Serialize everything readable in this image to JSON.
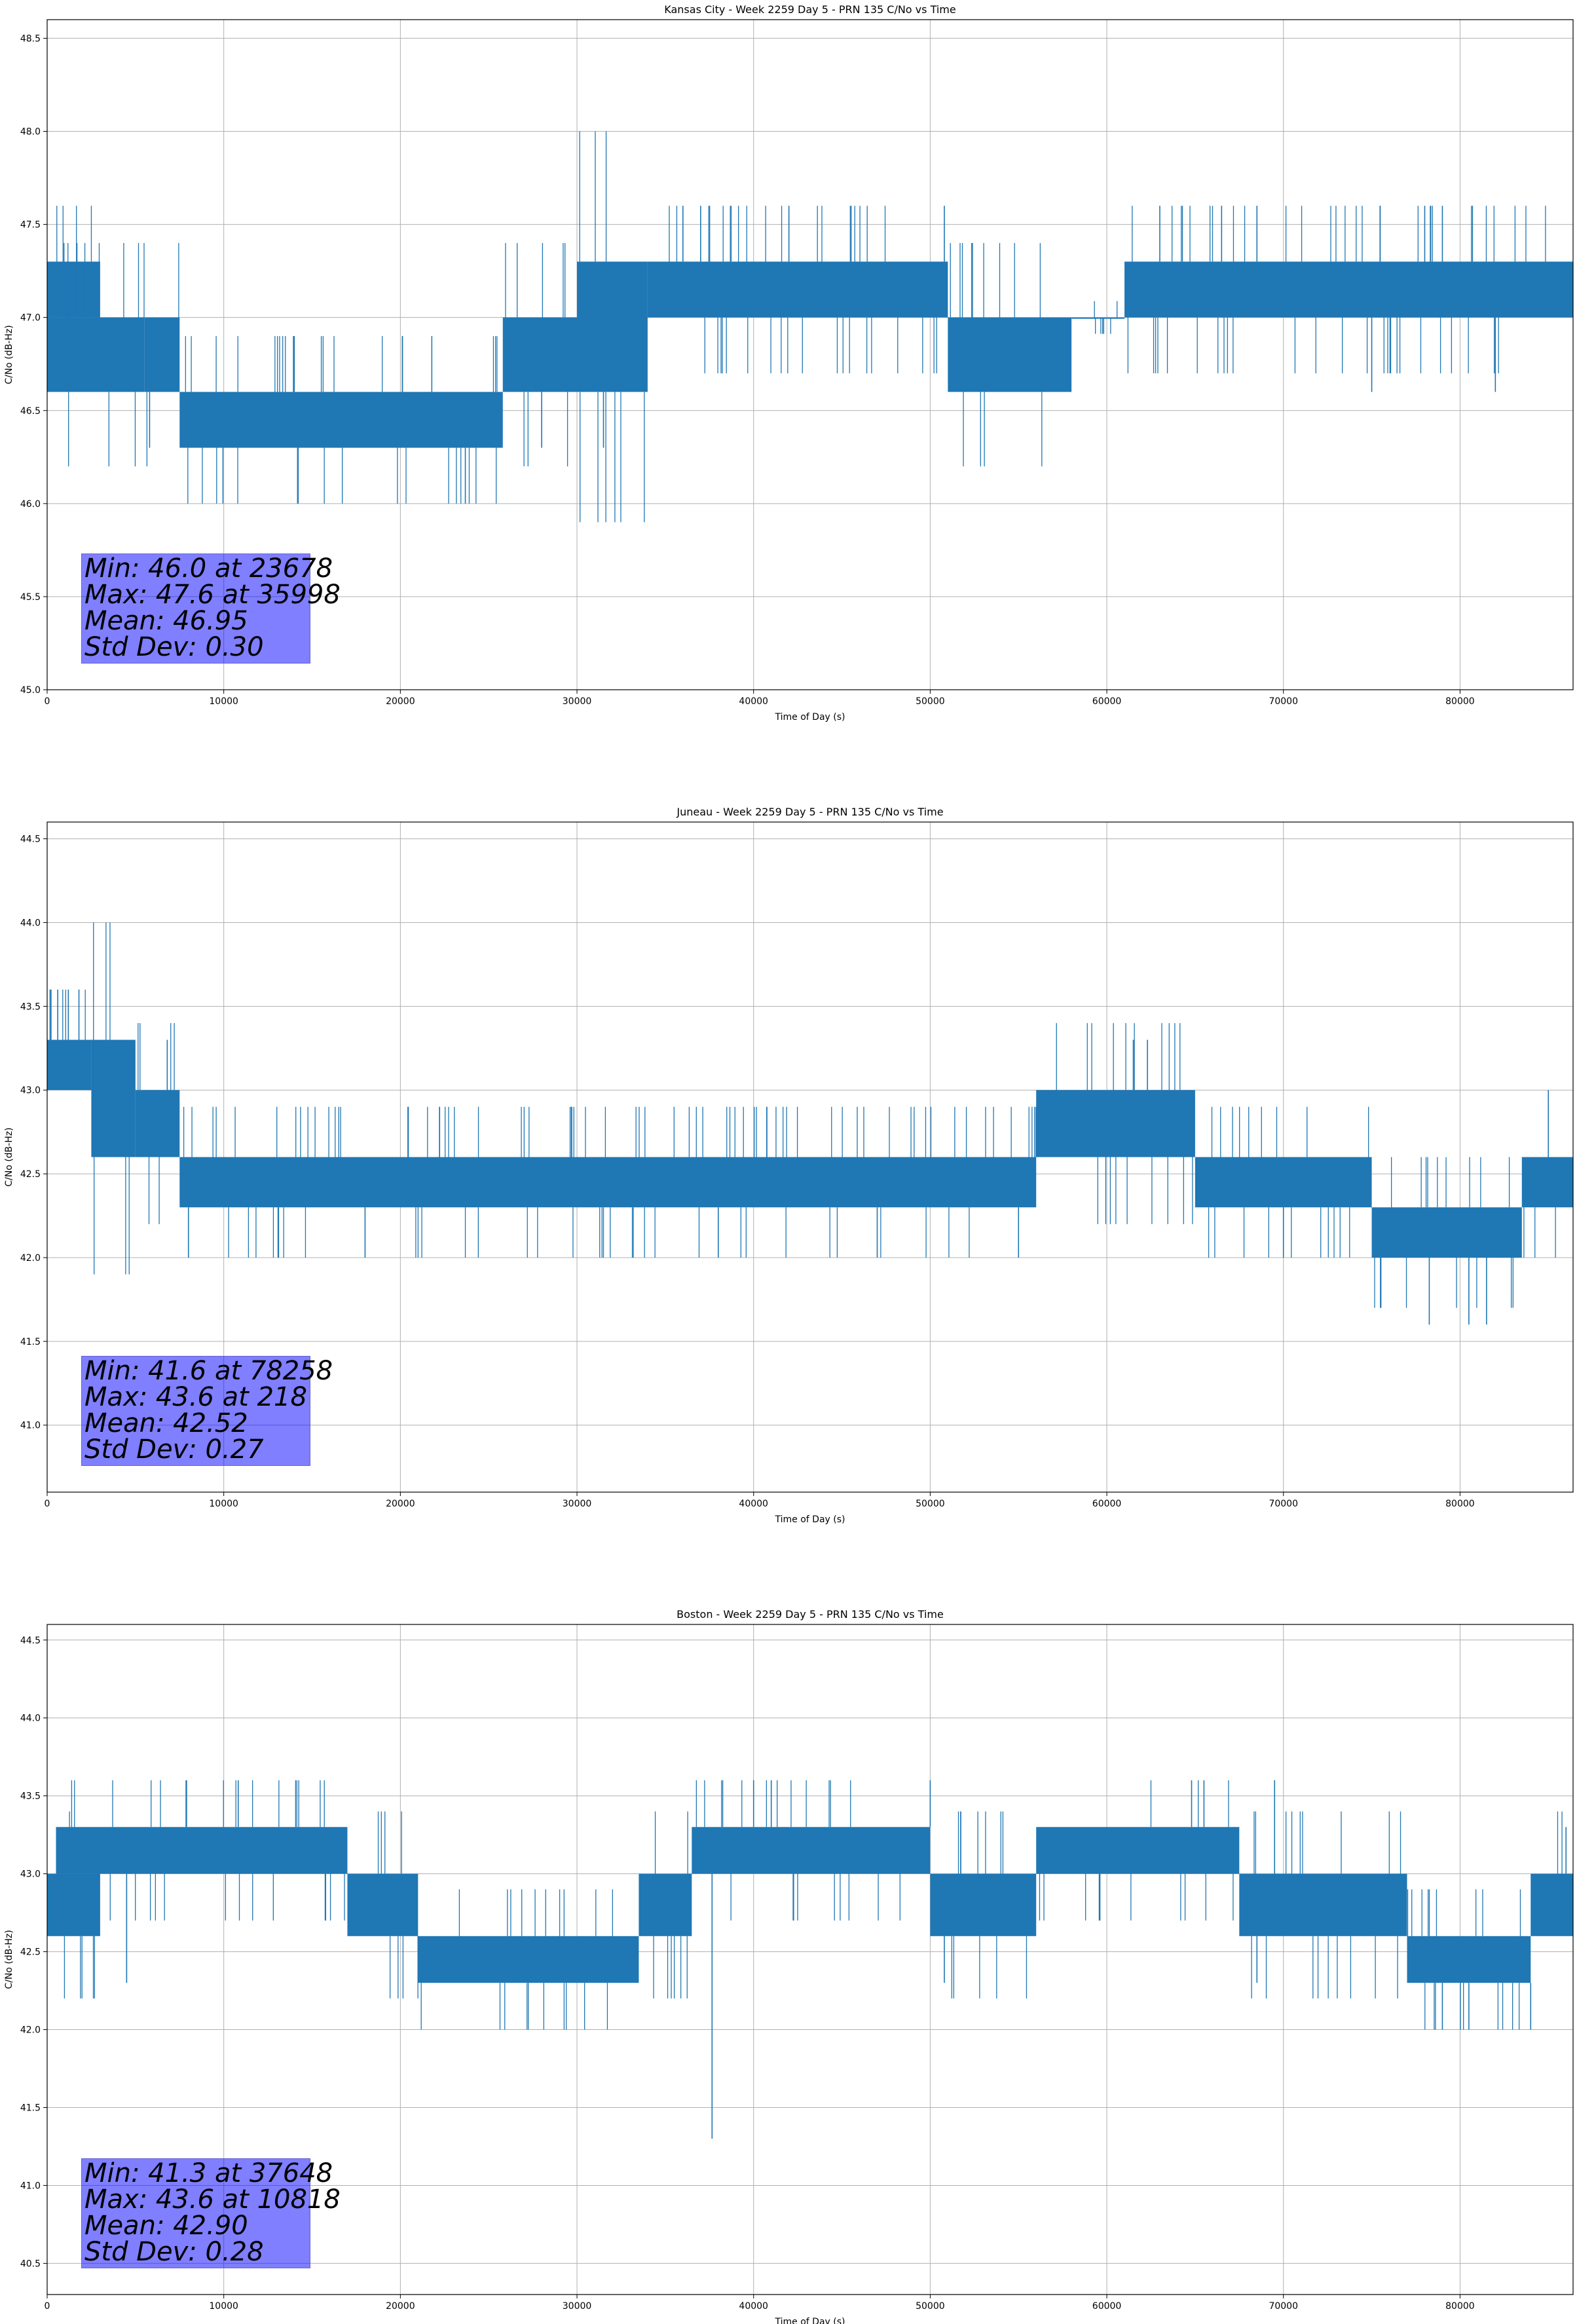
{
  "colors": {
    "line": "#1f77b4",
    "grid": "#b0b0b0",
    "stats_box": "#8080ff"
  },
  "chart_data": [
    {
      "type": "line",
      "title": "Kansas City - Week 2259 Day 5 - PRN 135 C/No vs Time",
      "xlabel": "Time of Day (s)",
      "ylabel": "C/No (dB-Hz)",
      "xlim": [
        0,
        86400
      ],
      "ylim": [
        45.0,
        48.6
      ],
      "xticks": [
        0,
        10000,
        20000,
        30000,
        40000,
        50000,
        60000,
        70000,
        80000
      ],
      "yticks": [
        "45.0",
        "45.5",
        "46.0",
        "46.5",
        "47.0",
        "47.5",
        "48.0",
        "48.5"
      ],
      "grid": true,
      "stats": [
        "Min: 46.0 at 23678",
        "Max: 47.6 at 35998",
        "Mean: 46.95",
        "Std Dev: 0.30"
      ],
      "series": [
        {
          "bands": [
            {
              "x": [
                0,
                3000
              ],
              "lo": 47.0,
              "hi": 47.3
            },
            {
              "x": [
                0,
                5500
              ],
              "lo": 46.6,
              "hi": 47.0
            },
            {
              "x": [
                5500,
                7500
              ],
              "lo": 46.6,
              "hi": 47.0
            },
            {
              "x": [
                7500,
                25800
              ],
              "lo": 46.3,
              "hi": 46.6
            },
            {
              "x": [
                25800,
                30000
              ],
              "lo": 46.6,
              "hi": 47.0
            },
            {
              "x": [
                30000,
                34000
              ],
              "lo": 46.6,
              "hi": 47.3
            },
            {
              "x": [
                34000,
                51000
              ],
              "lo": 47.0,
              "hi": 47.3
            },
            {
              "x": [
                51000,
                58000
              ],
              "lo": 46.6,
              "hi": 47.0
            },
            {
              "x": [
                58000,
                61000
              ],
              "lo": 47.0,
              "hi": 47.0
            },
            {
              "x": [
                61000,
                86400
              ],
              "lo": 47.0,
              "hi": 47.3
            }
          ],
          "spikes": [
            {
              "x": 23678,
              "v": 46.0
            },
            {
              "x": 35998,
              "v": 47.6
            },
            {
              "x": 37000,
              "v": 47.6
            },
            {
              "x": 42000,
              "v": 47.6
            },
            {
              "x": 50800,
              "v": 47.6
            },
            {
              "x": 63000,
              "v": 47.6
            },
            {
              "x": 66500,
              "v": 47.6
            },
            {
              "x": 68500,
              "v": 47.6
            },
            {
              "x": 78000,
              "v": 47.6
            },
            {
              "x": 79000,
              "v": 47.6
            },
            {
              "x": 31500,
              "v": 46.3
            },
            {
              "x": 28000,
              "v": 46.3
            },
            {
              "x": 5800,
              "v": 46.3
            },
            {
              "x": 57500,
              "v": 46.6
            },
            {
              "x": 75000,
              "v": 46.6
            },
            {
              "x": 82000,
              "v": 46.6
            }
          ]
        }
      ]
    },
    {
      "type": "line",
      "title": "Juneau - Week 2259 Day 5 - PRN 135 C/No vs Time",
      "xlabel": "Time of Day (s)",
      "ylabel": "C/No (dB-Hz)",
      "xlim": [
        0,
        86400
      ],
      "ylim": [
        40.6,
        44.6
      ],
      "xticks": [
        0,
        10000,
        20000,
        30000,
        40000,
        50000,
        60000,
        70000,
        80000
      ],
      "yticks": [
        "41.0",
        "41.5",
        "42.0",
        "42.5",
        "43.0",
        "43.5",
        "44.0",
        "44.5"
      ],
      "grid": true,
      "stats": [
        "Min: 41.6 at 78258",
        "Max: 43.6 at 218",
        "Mean: 42.52",
        "Std Dev: 0.27"
      ],
      "series": [
        {
          "bands": [
            {
              "x": [
                0,
                2500
              ],
              "lo": 43.0,
              "hi": 43.3
            },
            {
              "x": [
                2500,
                5000
              ],
              "lo": 42.6,
              "hi": 43.3
            },
            {
              "x": [
                5000,
                7500
              ],
              "lo": 42.6,
              "hi": 43.0
            },
            {
              "x": [
                7500,
                56000
              ],
              "lo": 42.3,
              "hi": 42.6
            },
            {
              "x": [
                56000,
                65000
              ],
              "lo": 42.6,
              "hi": 43.0
            },
            {
              "x": [
                65000,
                75000
              ],
              "lo": 42.3,
              "hi": 42.6
            },
            {
              "x": [
                75000,
                83500
              ],
              "lo": 42.0,
              "hi": 42.3
            },
            {
              "x": [
                83500,
                86400
              ],
              "lo": 42.3,
              "hi": 42.6
            }
          ],
          "spikes": [
            {
              "x": 218,
              "v": 43.6
            },
            {
              "x": 600,
              "v": 43.6
            },
            {
              "x": 1200,
              "v": 43.6
            },
            {
              "x": 1800,
              "v": 43.6
            },
            {
              "x": 2600,
              "v": 43.3
            },
            {
              "x": 3800,
              "v": 43.3
            },
            {
              "x": 6800,
              "v": 43.3
            },
            {
              "x": 61500,
              "v": 43.3
            },
            {
              "x": 62300,
              "v": 43.3
            },
            {
              "x": 78258,
              "v": 41.6
            },
            {
              "x": 80500,
              "v": 41.6
            },
            {
              "x": 81500,
              "v": 41.6
            },
            {
              "x": 85000,
              "v": 43.0
            },
            {
              "x": 8000,
              "v": 42.0
            },
            {
              "x": 18000,
              "v": 42.0
            },
            {
              "x": 38000,
              "v": 42.0
            },
            {
              "x": 47000,
              "v": 42.0
            },
            {
              "x": 55000,
              "v": 42.0
            },
            {
              "x": 70000,
              "v": 42.0
            }
          ]
        }
      ]
    },
    {
      "type": "line",
      "title": "Boston - Week 2259 Day 5 - PRN 135 C/No vs Time",
      "xlabel": "Time of Day (s)",
      "ylabel": "C/No (dB-Hz)",
      "xlim": [
        0,
        86400
      ],
      "ylim": [
        40.3,
        44.6
      ],
      "xticks": [
        0,
        10000,
        20000,
        30000,
        40000,
        50000,
        60000,
        70000,
        80000
      ],
      "yticks": [
        "40.5",
        "41.0",
        "41.5",
        "42.0",
        "42.5",
        "43.0",
        "43.5",
        "44.0",
        "44.5"
      ],
      "grid": true,
      "stats": [
        "Min: 41.3 at 37648",
        "Max: 43.6 at 10818",
        "Mean: 42.90",
        "Std Dev: 0.28"
      ],
      "series": [
        {
          "bands": [
            {
              "x": [
                0,
                500
              ],
              "lo": 42.6,
              "hi": 43.0
            },
            {
              "x": [
                500,
                17000
              ],
              "lo": 43.0,
              "hi": 43.3
            },
            {
              "x": [
                500,
                3000
              ],
              "lo": 42.6,
              "hi": 43.0
            },
            {
              "x": [
                17000,
                21000
              ],
              "lo": 42.6,
              "hi": 43.0
            },
            {
              "x": [
                21000,
                33500
              ],
              "lo": 42.3,
              "hi": 42.6
            },
            {
              "x": [
                33500,
                36500
              ],
              "lo": 42.6,
              "hi": 43.0
            },
            {
              "x": [
                36500,
                50000
              ],
              "lo": 43.0,
              "hi": 43.3
            },
            {
              "x": [
                50000,
                56000
              ],
              "lo": 42.6,
              "hi": 43.0
            },
            {
              "x": [
                56000,
                67500
              ],
              "lo": 43.0,
              "hi": 43.3
            },
            {
              "x": [
                67500,
                77000
              ],
              "lo": 42.6,
              "hi": 43.0
            },
            {
              "x": [
                77000,
                84000
              ],
              "lo": 42.3,
              "hi": 42.6
            },
            {
              "x": [
                84000,
                86400
              ],
              "lo": 42.6,
              "hi": 43.0
            }
          ],
          "spikes": [
            {
              "x": 37648,
              "v": 41.3
            },
            {
              "x": 10818,
              "v": 43.6
            },
            {
              "x": 40000,
              "v": 43.6
            },
            {
              "x": 41000,
              "v": 43.6
            },
            {
              "x": 50000,
              "v": 43.6
            },
            {
              "x": 64800,
              "v": 43.6
            },
            {
              "x": 65500,
              "v": 43.6
            },
            {
              "x": 69500,
              "v": 43.6
            },
            {
              "x": 4500,
              "v": 42.3
            },
            {
              "x": 50800,
              "v": 42.3
            },
            {
              "x": 68500,
              "v": 42.3
            },
            {
              "x": 79000,
              "v": 42.0
            },
            {
              "x": 80500,
              "v": 42.0
            },
            {
              "x": 84000,
              "v": 42.0
            },
            {
              "x": 86000,
              "v": 43.3
            }
          ]
        }
      ]
    }
  ]
}
